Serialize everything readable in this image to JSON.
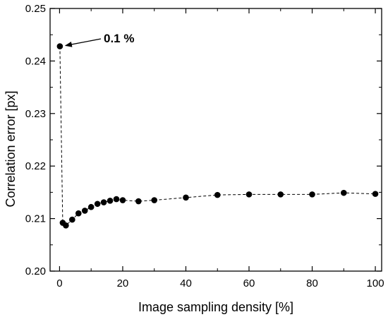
{
  "chart_data": {
    "type": "scatter",
    "xlabel": "Image sampling density [%]",
    "ylabel": "Correlation error [px]",
    "xlim": [
      -3,
      102
    ],
    "ylim": [
      0.2,
      0.25
    ],
    "xticks": [
      0,
      20,
      40,
      60,
      80,
      100
    ],
    "yticks": [
      0.2,
      0.21,
      0.22,
      0.23,
      0.24,
      0.25
    ],
    "xtick_labels": [
      "0",
      "20",
      "40",
      "60",
      "80",
      "100"
    ],
    "ytick_labels": [
      "0.20",
      "0.21",
      "0.22",
      "0.23",
      "0.24",
      "0.25"
    ],
    "grid": false,
    "marker": "filled-circle",
    "line_style": "dashed",
    "color": "#000000",
    "series": [
      {
        "x": [
          0.1,
          1,
          2,
          4,
          6,
          8,
          10,
          12,
          14,
          16,
          18,
          20,
          25,
          30,
          40,
          50,
          60,
          70,
          80,
          90,
          100
        ],
        "y": [
          0.2428,
          0.2092,
          0.2087,
          0.2098,
          0.211,
          0.2115,
          0.2122,
          0.2128,
          0.2131,
          0.2134,
          0.2137,
          0.2135,
          0.2133,
          0.2135,
          0.214,
          0.2145,
          0.2146,
          0.2146,
          0.2146,
          0.2149,
          0.2147
        ]
      }
    ],
    "annotations": [
      {
        "text": "0.1 %",
        "x": 0.1,
        "y": 0.2428
      }
    ]
  }
}
